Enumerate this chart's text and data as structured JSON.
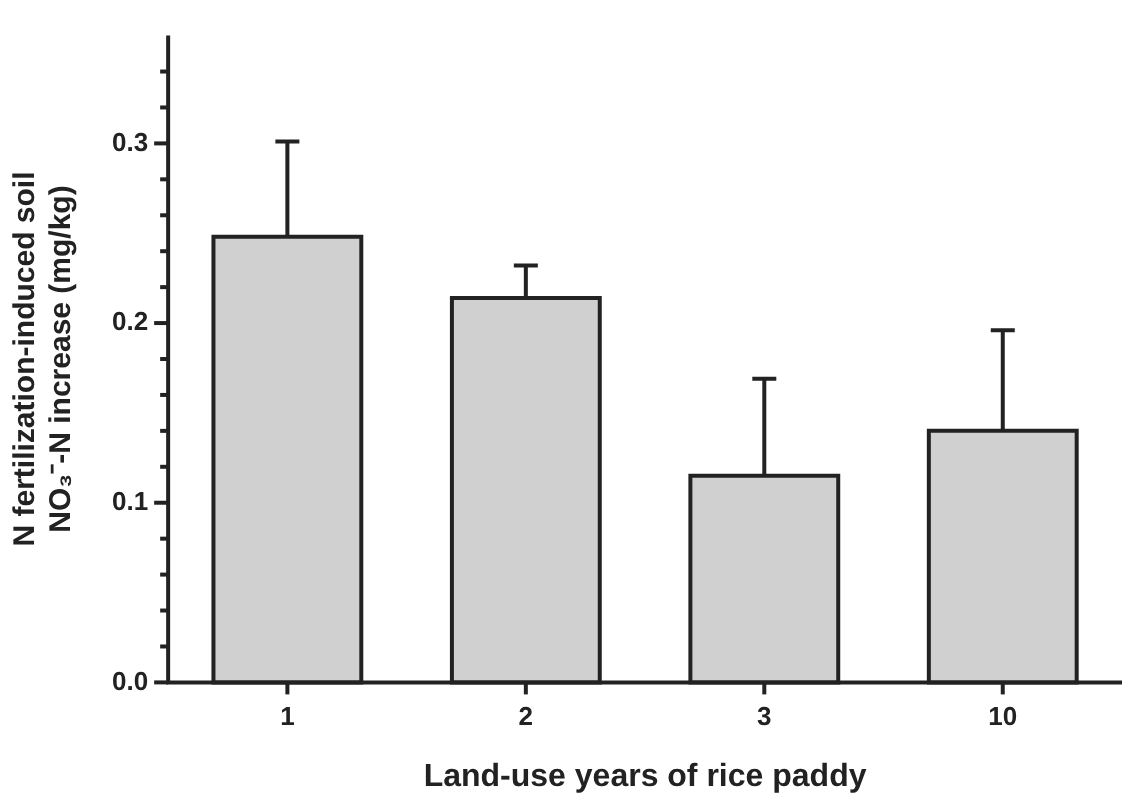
{
  "chart_data": {
    "type": "bar",
    "xlabel": "Land-use years of rice paddy",
    "ylabel": "N fertilization-induced soil\nNO₃⁻-N increase (mg/kg)",
    "categories": [
      "1",
      "2",
      "3",
      "10"
    ],
    "values": [
      0.248,
      0.214,
      0.115,
      0.14
    ],
    "errors": [
      0.053,
      0.018,
      0.054,
      0.056
    ],
    "color": "#d0d0d0",
    "ylim": [
      0,
      0.36
    ],
    "yticks": [
      {
        "value": 0,
        "label": "0.0"
      },
      {
        "value": 0.02,
        "label": null
      },
      {
        "value": 0.04,
        "label": null
      },
      {
        "value": 0.06,
        "label": null
      },
      {
        "value": 0.08,
        "label": null
      },
      {
        "value": 0.1,
        "label": "0.1"
      },
      {
        "value": 0.12,
        "label": null
      },
      {
        "value": 0.14,
        "label": null
      },
      {
        "value": 0.16,
        "label": null
      },
      {
        "value": 0.18,
        "label": null
      },
      {
        "value": 0.2,
        "label": "0.2"
      },
      {
        "value": 0.22,
        "label": null
      },
      {
        "value": 0.24,
        "label": null
      },
      {
        "value": 0.26,
        "label": null
      },
      {
        "value": 0.28,
        "label": null
      },
      {
        "value": 0.3,
        "label": "0.3"
      },
      {
        "value": 0.32,
        "label": null
      },
      {
        "value": 0.34,
        "label": null
      }
    ],
    "grid": false,
    "legend": false
  }
}
